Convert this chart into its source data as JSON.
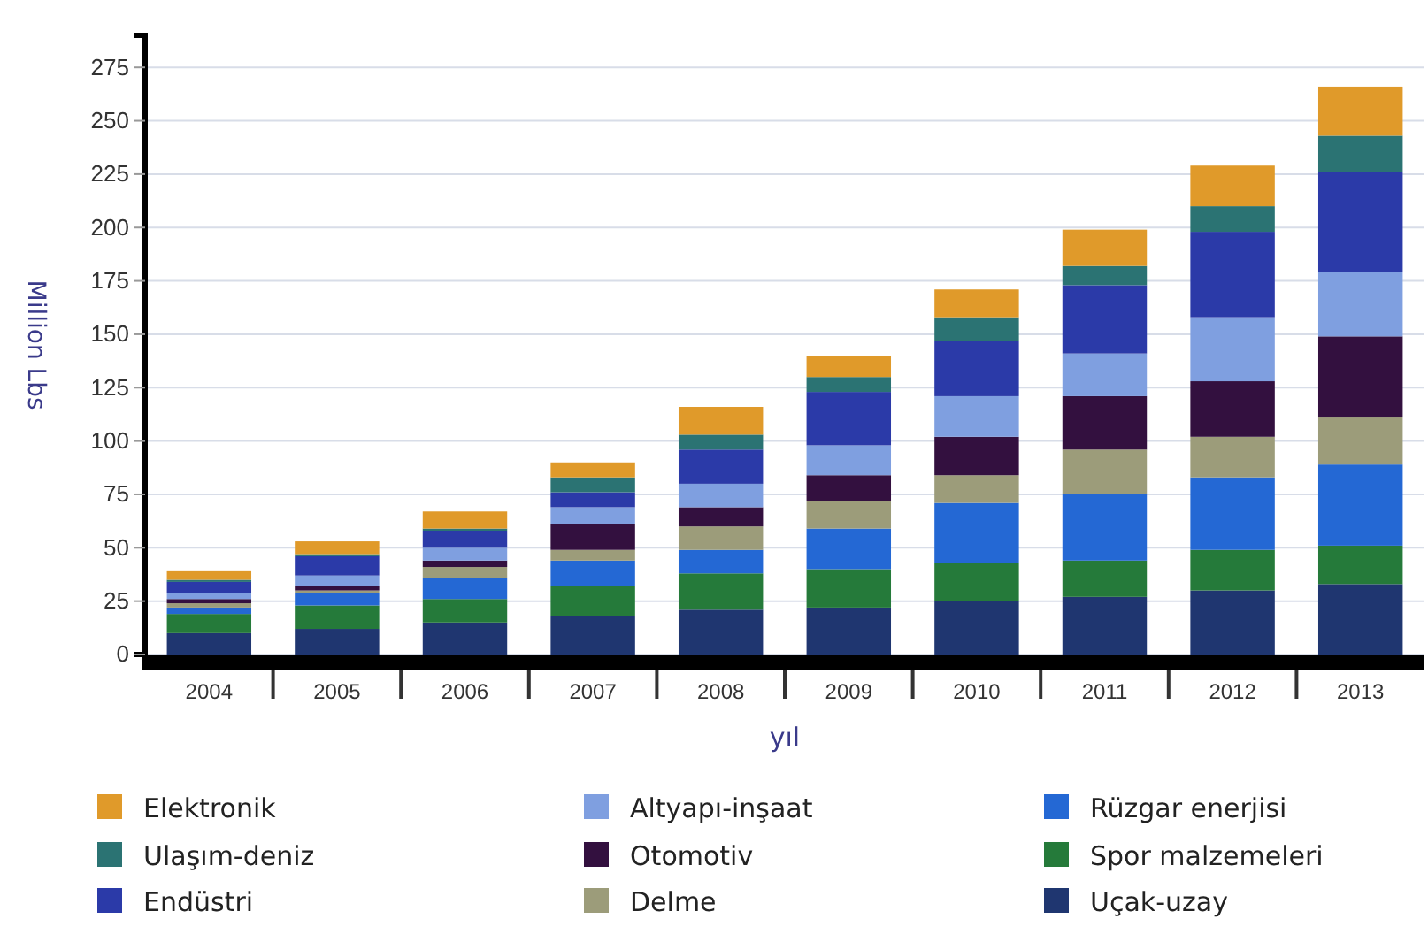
{
  "chart_data": {
    "type": "bar",
    "stacked": true,
    "xlabel": "yıl",
    "ylabel": "Million Lbs",
    "categories": [
      "2004",
      "2005",
      "2006",
      "2007",
      "2008",
      "2009",
      "2010",
      "2011",
      "2012",
      "2013"
    ],
    "ylim": [
      0,
      290
    ],
    "yticks": [
      0,
      25,
      50,
      75,
      100,
      125,
      150,
      175,
      200,
      225,
      250,
      275
    ],
    "grid": "y",
    "legend": "bottom",
    "series": [
      {
        "name": "Uçak-uzay",
        "color": "#1f3670",
        "values": [
          10,
          12,
          15,
          18,
          21,
          22,
          25,
          27,
          30,
          33
        ]
      },
      {
        "name": "Spor malzemeleri",
        "color": "#257a3a",
        "values": [
          9,
          11,
          11,
          14,
          17,
          18,
          18,
          17,
          19,
          18
        ]
      },
      {
        "name": "Rüzgar enerjisi",
        "color": "#2468d4",
        "values": [
          3,
          6,
          10,
          12,
          11,
          19,
          28,
          31,
          34,
          38
        ]
      },
      {
        "name": "Delme",
        "color": "#9c9c7a",
        "values": [
          2,
          1,
          5,
          5,
          11,
          13,
          13,
          21,
          19,
          22
        ]
      },
      {
        "name": "Otomotiv",
        "color": "#33103f",
        "values": [
          2,
          2,
          3,
          12,
          9,
          12,
          18,
          25,
          26,
          38
        ]
      },
      {
        "name": "Altyapı-inşaat",
        "color": "#7f9fe0",
        "values": [
          3,
          5,
          6,
          8,
          11,
          14,
          19,
          20,
          30,
          30
        ]
      },
      {
        "name": "Endüstri",
        "color": "#2b3aa8",
        "values": [
          5,
          9,
          8,
          7,
          16,
          25,
          26,
          32,
          40,
          47
        ]
      },
      {
        "name": "Ulaşım-deniz",
        "color": "#2b7373",
        "values": [
          1,
          1,
          1,
          7,
          7,
          7,
          11,
          9,
          12,
          17
        ]
      },
      {
        "name": "Elektronik",
        "color": "#e09a2a",
        "values": [
          4,
          6,
          8,
          7,
          13,
          10,
          13,
          17,
          19,
          23
        ]
      }
    ]
  }
}
